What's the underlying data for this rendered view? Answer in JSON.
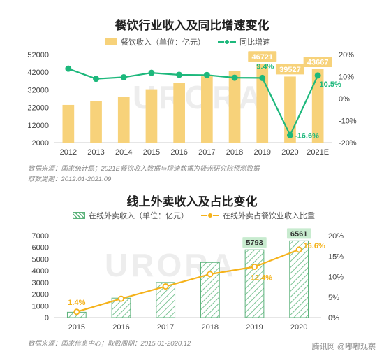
{
  "chart1": {
    "title": "餐饮行业收入及同比增速变化",
    "legend": {
      "bar": "餐饮收入（单位：亿元）",
      "line": "同比增速"
    },
    "source_line1": "数据来源：国家统计局；2021E餐饮收入数据与增速数据为极光研究院预测数据",
    "source_line2": "取数周期：2012.01-2021.09",
    "watermark": "URORA"
  },
  "chart2": {
    "title": "线上外卖收入及占比变化",
    "legend": {
      "bar": "在线外卖收入（单位：亿元）",
      "line": "在线外卖占餐饮业收入比重"
    },
    "source_line": "数据来源：国家信息中心；取数周期：2015.01-2020.12",
    "watermark": "URORA"
  },
  "footer": {
    "brand": "腾讯网 @嘟嘟观察"
  },
  "colors": {
    "bar1": "#f7d27a",
    "line1": "#1db87c",
    "bar2_hatch": "#5bb27a",
    "line2": "#f5b21a",
    "label_box": "#c8ebcf"
  },
  "chart_data": [
    {
      "type": "bar",
      "categories": [
        "2012",
        "2013",
        "2014",
        "2015",
        "2016",
        "2017",
        "2018",
        "2019",
        "2020",
        "2021E"
      ],
      "series": [
        {
          "name": "餐饮收入（单位：亿元）",
          "axis": "left",
          "values": [
            23448,
            25569,
            27860,
            32310,
            35799,
            39644,
            42716,
            46721,
            39527,
            43667
          ]
        },
        {
          "name": "同比增速",
          "type": "line",
          "axis": "right",
          "values": [
            13.6,
            9.0,
            9.7,
            11.7,
            10.8,
            10.7,
            9.5,
            9.4,
            -16.6,
            10.5
          ]
        }
      ],
      "data_labels": {
        "bar": [
          {
            "index": 7,
            "text": "46721"
          },
          {
            "index": 8,
            "text": "39527"
          },
          {
            "index": 9,
            "text": "43667"
          }
        ],
        "line": [
          {
            "index": 7,
            "text": "9.4%"
          },
          {
            "index": 8,
            "text": "-16.6%"
          },
          {
            "index": 9,
            "text": "10.5%"
          }
        ]
      },
      "yleft": {
        "min": 2000,
        "max": 52000,
        "ticks": [
          "52000",
          "42000",
          "32000",
          "22000",
          "12000",
          "2000"
        ],
        "tick_values": [
          52000,
          42000,
          32000,
          22000,
          12000,
          2000
        ]
      },
      "yright": {
        "min": -20,
        "max": 20,
        "ticks": [
          "20%",
          "10%",
          "0%",
          "-10%",
          "-20%"
        ],
        "tick_values": [
          20,
          10,
          0,
          -10,
          -20
        ]
      },
      "grid": false
    },
    {
      "type": "bar",
      "categories": [
        "2015",
        "2016",
        "2017",
        "2018",
        "2019",
        "2020"
      ],
      "series": [
        {
          "name": "在线外卖收入（单位：亿元）",
          "axis": "left",
          "values": [
            457,
            1663,
            2999,
            4712,
            5793,
            6561
          ]
        },
        {
          "name": "在线外卖占餐饮业收入比重",
          "type": "line",
          "axis": "right",
          "values": [
            1.4,
            4.6,
            7.6,
            10.6,
            12.4,
            16.6
          ]
        }
      ],
      "data_labels": {
        "bar": [
          {
            "index": 4,
            "text": "5793"
          },
          {
            "index": 5,
            "text": "6561"
          }
        ],
        "line": [
          {
            "index": 0,
            "text": "1.4%"
          },
          {
            "index": 4,
            "text": "12.4%"
          },
          {
            "index": 5,
            "text": "16.6%"
          }
        ]
      },
      "yleft": {
        "min": 0,
        "max": 7000,
        "ticks": [
          "7000",
          "6000",
          "5000",
          "4000",
          "3000",
          "2000",
          "1000",
          "0"
        ],
        "tick_values": [
          7000,
          6000,
          5000,
          4000,
          3000,
          2000,
          1000,
          0
        ]
      },
      "yright": {
        "min": 0,
        "max": 20,
        "ticks": [
          "20%",
          "15%",
          "10%",
          "5%",
          "0%"
        ],
        "tick_values": [
          20,
          15,
          10,
          5,
          0
        ]
      },
      "grid": false
    }
  ]
}
